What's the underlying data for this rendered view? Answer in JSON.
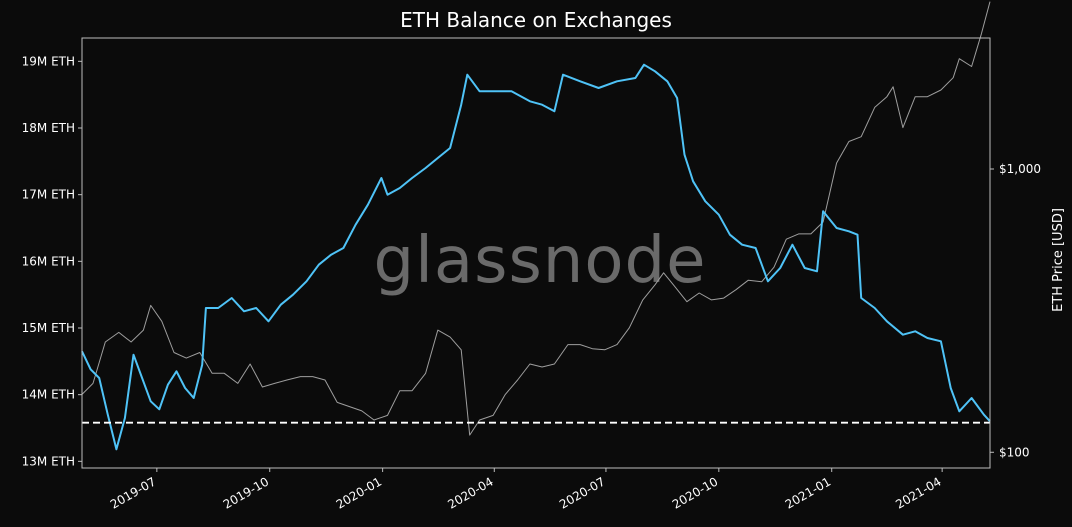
{
  "watermark": "glassnode",
  "chart_data": {
    "type": "line",
    "title": "ETH Balance on Exchanges",
    "xlabel": "",
    "ylabel": "",
    "y2label": "ETH Price [USD]",
    "ylim": [
      12900000,
      19350000
    ],
    "y2_log": true,
    "y2lim": [
      88,
      2900
    ],
    "x_range": [
      "2019-05-01",
      "2021-05-10"
    ],
    "grid": false,
    "legend": "none",
    "x_ticks": [
      {
        "date": "2019-07-01",
        "label": "2019-07"
      },
      {
        "date": "2019-10-01",
        "label": "2019-10"
      },
      {
        "date": "2020-01-01",
        "label": "2020-01"
      },
      {
        "date": "2020-04-01",
        "label": "2020-04"
      },
      {
        "date": "2020-07-01",
        "label": "2020-07"
      },
      {
        "date": "2020-10-01",
        "label": "2020-10"
      },
      {
        "date": "2021-01-01",
        "label": "2021-01"
      },
      {
        "date": "2021-04-01",
        "label": "2021-04"
      }
    ],
    "y_ticks": [
      {
        "value": 13000000,
        "label": "13M ETH"
      },
      {
        "value": 14000000,
        "label": "14M ETH"
      },
      {
        "value": 15000000,
        "label": "15M ETH"
      },
      {
        "value": 16000000,
        "label": "16M ETH"
      },
      {
        "value": 17000000,
        "label": "17M ETH"
      },
      {
        "value": 18000000,
        "label": "18M ETH"
      },
      {
        "value": 19000000,
        "label": "19M ETH"
      }
    ],
    "y2_ticks": [
      {
        "value": 100,
        "label": "$100"
      },
      {
        "value": 1000,
        "label": "$1,000"
      }
    ],
    "reference_line": {
      "value": 13580000,
      "style": "dashed",
      "color": "#ffffff"
    },
    "series": [
      {
        "color": "#4fc3f7",
        "axis": "left",
        "points": [
          [
            "2019-05-01",
            14650000
          ],
          [
            "2019-05-08",
            14380000
          ],
          [
            "2019-05-15",
            14250000
          ],
          [
            "2019-05-22",
            13700000
          ],
          [
            "2019-05-29",
            13180000
          ],
          [
            "2019-06-05",
            13650000
          ],
          [
            "2019-06-12",
            14600000
          ],
          [
            "2019-06-19",
            14250000
          ],
          [
            "2019-06-26",
            13900000
          ],
          [
            "2019-07-03",
            13780000
          ],
          [
            "2019-07-10",
            14150000
          ],
          [
            "2019-07-17",
            14350000
          ],
          [
            "2019-07-24",
            14100000
          ],
          [
            "2019-07-31",
            13950000
          ],
          [
            "2019-08-07",
            14450000
          ],
          [
            "2019-08-10",
            15300000
          ],
          [
            "2019-08-20",
            15300000
          ],
          [
            "2019-08-31",
            15450000
          ],
          [
            "2019-09-10",
            15250000
          ],
          [
            "2019-09-20",
            15300000
          ],
          [
            "2019-09-30",
            15100000
          ],
          [
            "2019-10-10",
            15350000
          ],
          [
            "2019-10-20",
            15500000
          ],
          [
            "2019-10-31",
            15700000
          ],
          [
            "2019-11-10",
            15950000
          ],
          [
            "2019-11-20",
            16100000
          ],
          [
            "2019-11-30",
            16200000
          ],
          [
            "2019-12-10",
            16550000
          ],
          [
            "2019-12-20",
            16850000
          ],
          [
            "2019-12-31",
            17250000
          ],
          [
            "2020-01-05",
            17000000
          ],
          [
            "2020-01-15",
            17100000
          ],
          [
            "2020-01-25",
            17250000
          ],
          [
            "2020-02-05",
            17400000
          ],
          [
            "2020-02-15",
            17550000
          ],
          [
            "2020-02-25",
            17700000
          ],
          [
            "2020-03-05",
            18350000
          ],
          [
            "2020-03-10",
            18800000
          ],
          [
            "2020-03-20",
            18550000
          ],
          [
            "2020-04-01",
            18550000
          ],
          [
            "2020-04-15",
            18550000
          ],
          [
            "2020-04-30",
            18400000
          ],
          [
            "2020-05-10",
            18350000
          ],
          [
            "2020-05-20",
            18250000
          ],
          [
            "2020-05-27",
            18800000
          ],
          [
            "2020-06-10",
            18700000
          ],
          [
            "2020-06-25",
            18600000
          ],
          [
            "2020-07-10",
            18700000
          ],
          [
            "2020-07-25",
            18750000
          ],
          [
            "2020-08-01",
            18950000
          ],
          [
            "2020-08-10",
            18850000
          ],
          [
            "2020-08-20",
            18700000
          ],
          [
            "2020-08-28",
            18450000
          ],
          [
            "2020-09-03",
            17600000
          ],
          [
            "2020-09-10",
            17200000
          ],
          [
            "2020-09-20",
            16900000
          ],
          [
            "2020-10-01",
            16700000
          ],
          [
            "2020-10-10",
            16400000
          ],
          [
            "2020-10-20",
            16250000
          ],
          [
            "2020-10-31",
            16200000
          ],
          [
            "2020-11-10",
            15700000
          ],
          [
            "2020-11-20",
            15900000
          ],
          [
            "2020-11-30",
            16250000
          ],
          [
            "2020-12-10",
            15900000
          ],
          [
            "2020-12-20",
            15850000
          ],
          [
            "2020-12-25",
            16750000
          ],
          [
            "2021-01-05",
            16500000
          ],
          [
            "2021-01-15",
            16450000
          ],
          [
            "2021-01-22",
            16400000
          ],
          [
            "2021-01-25",
            15450000
          ],
          [
            "2021-02-05",
            15300000
          ],
          [
            "2021-02-15",
            15100000
          ],
          [
            "2021-02-28",
            14900000
          ],
          [
            "2021-03-10",
            14950000
          ],
          [
            "2021-03-20",
            14850000
          ],
          [
            "2021-03-31",
            14800000
          ],
          [
            "2021-04-08",
            14100000
          ],
          [
            "2021-04-15",
            13750000
          ],
          [
            "2021-04-25",
            13950000
          ],
          [
            "2021-05-05",
            13700000
          ],
          [
            "2021-05-10",
            13600000
          ]
        ]
      },
      {
        "color": "#9e9e9e",
        "axis": "right",
        "points": [
          [
            "2019-05-01",
            160
          ],
          [
            "2019-05-10",
            175
          ],
          [
            "2019-05-20",
            245
          ],
          [
            "2019-05-31",
            265
          ],
          [
            "2019-06-10",
            245
          ],
          [
            "2019-06-20",
            270
          ],
          [
            "2019-06-26",
            330
          ],
          [
            "2019-07-05",
            290
          ],
          [
            "2019-07-15",
            225
          ],
          [
            "2019-07-25",
            215
          ],
          [
            "2019-08-05",
            225
          ],
          [
            "2019-08-15",
            190
          ],
          [
            "2019-08-25",
            190
          ],
          [
            "2019-09-05",
            175
          ],
          [
            "2019-09-15",
            205
          ],
          [
            "2019-09-25",
            170
          ],
          [
            "2019-10-05",
            175
          ],
          [
            "2019-10-15",
            180
          ],
          [
            "2019-10-26",
            185
          ],
          [
            "2019-11-05",
            185
          ],
          [
            "2019-11-15",
            180
          ],
          [
            "2019-11-25",
            150
          ],
          [
            "2019-12-05",
            145
          ],
          [
            "2019-12-15",
            140
          ],
          [
            "2019-12-25",
            130
          ],
          [
            "2020-01-05",
            135
          ],
          [
            "2020-01-15",
            165
          ],
          [
            "2020-01-25",
            165
          ],
          [
            "2020-02-05",
            190
          ],
          [
            "2020-02-15",
            270
          ],
          [
            "2020-02-25",
            255
          ],
          [
            "2020-03-05",
            230
          ],
          [
            "2020-03-12",
            115
          ],
          [
            "2020-03-20",
            130
          ],
          [
            "2020-03-31",
            135
          ],
          [
            "2020-04-10",
            160
          ],
          [
            "2020-04-20",
            180
          ],
          [
            "2020-04-30",
            205
          ],
          [
            "2020-05-10",
            200
          ],
          [
            "2020-05-20",
            205
          ],
          [
            "2020-05-31",
            240
          ],
          [
            "2020-06-10",
            240
          ],
          [
            "2020-06-20",
            232
          ],
          [
            "2020-06-30",
            230
          ],
          [
            "2020-07-10",
            240
          ],
          [
            "2020-07-20",
            275
          ],
          [
            "2020-07-31",
            345
          ],
          [
            "2020-08-10",
            390
          ],
          [
            "2020-08-17",
            430
          ],
          [
            "2020-08-25",
            390
          ],
          [
            "2020-09-05",
            340
          ],
          [
            "2020-09-15",
            365
          ],
          [
            "2020-09-25",
            345
          ],
          [
            "2020-10-05",
            350
          ],
          [
            "2020-10-15",
            375
          ],
          [
            "2020-10-25",
            405
          ],
          [
            "2020-11-05",
            400
          ],
          [
            "2020-11-15",
            450
          ],
          [
            "2020-11-25",
            565
          ],
          [
            "2020-12-05",
            590
          ],
          [
            "2020-12-15",
            590
          ],
          [
            "2020-12-25",
            650
          ],
          [
            "2021-01-05",
            1050
          ],
          [
            "2021-01-15",
            1250
          ],
          [
            "2021-01-25",
            1300
          ],
          [
            "2021-02-05",
            1650
          ],
          [
            "2021-02-15",
            1800
          ],
          [
            "2021-02-20",
            1950
          ],
          [
            "2021-02-28",
            1400
          ],
          [
            "2021-03-10",
            1800
          ],
          [
            "2021-03-20",
            1800
          ],
          [
            "2021-03-31",
            1900
          ],
          [
            "2021-04-10",
            2100
          ],
          [
            "2021-04-15",
            2450
          ],
          [
            "2021-04-25",
            2300
          ],
          [
            "2021-05-03",
            3000
          ],
          [
            "2021-05-10",
            3900
          ]
        ]
      }
    ]
  }
}
